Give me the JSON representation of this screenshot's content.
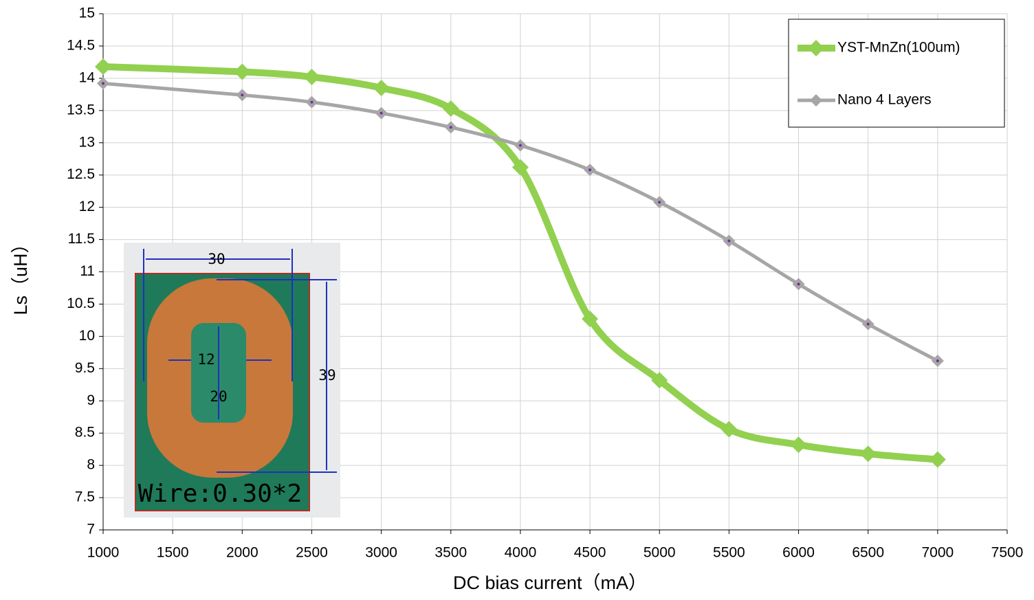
{
  "chart_data": {
    "type": "line",
    "x_label": "DC bias current（mA）",
    "y_label": "Ls（uH）",
    "x": [
      1000,
      2000,
      2500,
      3000,
      3500,
      4000,
      4500,
      5000,
      5500,
      6000,
      6500,
      7000
    ],
    "series": [
      {
        "name": "YST-MnZn(100um)",
        "color": "#92d050",
        "values": [
          14.18,
          14.1,
          14.02,
          13.85,
          13.53,
          12.62,
          10.27,
          9.32,
          8.56,
          8.32,
          8.18,
          8.09
        ]
      },
      {
        "name": "Nano 4 Layers",
        "color": "#a6a6a6",
        "values": [
          13.92,
          13.74,
          13.63,
          13.46,
          13.24,
          12.96,
          12.58,
          12.08,
          11.48,
          10.81,
          10.19,
          9.62
        ]
      }
    ],
    "xlim": [
      1000,
      7500
    ],
    "xticks": [
      1000,
      1500,
      2000,
      2500,
      3000,
      3500,
      4000,
      4500,
      5000,
      5500,
      6000,
      6500,
      7000,
      7500
    ],
    "ylim": [
      7,
      15
    ],
    "yticks": [
      7,
      7.5,
      8,
      8.5,
      9,
      9.5,
      10,
      10.5,
      11,
      11.5,
      12,
      12.5,
      13,
      13.5,
      14,
      14.5,
      15
    ],
    "grid": true,
    "legend": "top-right"
  },
  "inset": {
    "width_label": "30",
    "inner_width_label": "12",
    "inner_height_label": "20",
    "height_label": "39",
    "wire_label": "Wire:0.30*2"
  }
}
